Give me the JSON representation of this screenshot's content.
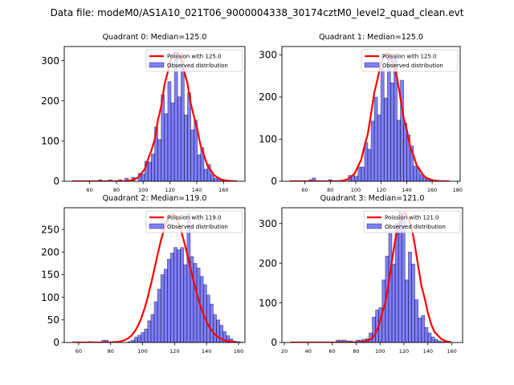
{
  "suptitle": "Data file: modeM0/AS1A10_021T06_9000004338_30174cztM0_level2_quad_clean.evt",
  "chart_data": [
    {
      "type": "bar",
      "title": "Quadrant 0: Median=125.0",
      "xlabel": "",
      "ylabel": "",
      "xlim": [
        41,
        176
      ],
      "ylim": [
        0,
        335
      ],
      "xticks": [
        60,
        80,
        100,
        120,
        140,
        160
      ],
      "yticks": [
        0,
        100,
        200,
        300
      ],
      "legend": {
        "position": "top-right",
        "entries": [
          "Poission with 125.0",
          "Observed distribution"
        ]
      },
      "hist": {
        "bin_start": 47,
        "bin_width": 2.46,
        "values": [
          0,
          0,
          0,
          0,
          0,
          0,
          0,
          0,
          4,
          0,
          0,
          4,
          0,
          0,
          4,
          0,
          8,
          0,
          10,
          0,
          20,
          18,
          50,
          48,
          68,
          135,
          104,
          215,
          168,
          248,
          195,
          320,
          210,
          300,
          165,
          220,
          128,
          152,
          66,
          84,
          30,
          42,
          18,
          8,
          6,
          3,
          2,
          1,
          0,
          0
        ]
      },
      "poisson": {
        "mean": 125.0,
        "peak": 322,
        "x_range": [
          47,
          170
        ]
      }
    },
    {
      "type": "bar",
      "title": "Quadrant 1: Median=125.0",
      "xlabel": "",
      "ylabel": "",
      "xlim": [
        42,
        182
      ],
      "ylim": [
        0,
        320
      ],
      "xticks": [
        60,
        80,
        100,
        120,
        140,
        160,
        180
      ],
      "yticks": [
        0,
        100,
        200,
        300
      ],
      "legend": {
        "position": "top-right",
        "entries": [
          "Poission with 125.0",
          "Observed distribution"
        ]
      },
      "hist": {
        "bin_start": 48,
        "bin_width": 2.56,
        "values": [
          0,
          0,
          0,
          0,
          0,
          0,
          4,
          8,
          0,
          0,
          0,
          0,
          4,
          0,
          0,
          0,
          0,
          0,
          14,
          14,
          12,
          34,
          34,
          92,
          76,
          143,
          200,
          158,
          270,
          198,
          298,
          234,
          300,
          145,
          240,
          138,
          110,
          84,
          36,
          32,
          16,
          10,
          6,
          4,
          2,
          1,
          0,
          0,
          0,
          0
        ]
      },
      "poisson": {
        "mean": 125.0,
        "peak": 305,
        "x_range": [
          48,
          176
        ]
      }
    },
    {
      "type": "bar",
      "title": "Quadrant 2: Median=119.0",
      "xlabel": "",
      "ylabel": "",
      "xlim": [
        51,
        164
      ],
      "ylim": [
        0,
        298
      ],
      "xticks": [
        60,
        80,
        100,
        120,
        140,
        160
      ],
      "yticks": [
        0,
        50,
        100,
        150,
        200,
        250
      ],
      "legend": {
        "position": "top-right",
        "entries": [
          "Poission with 119.0",
          "Observed distribution"
        ]
      },
      "hist": {
        "bin_start": 56,
        "bin_width": 2.05,
        "values": [
          0,
          0,
          0,
          0,
          0,
          2,
          0,
          0,
          0,
          5,
          5,
          0,
          0,
          0,
          0,
          0,
          0,
          2,
          5,
          12,
          16,
          22,
          30,
          48,
          62,
          90,
          118,
          150,
          162,
          184,
          198,
          210,
          205,
          210,
          172,
          285,
          190,
          175,
          165,
          146,
          128,
          105,
          85,
          62,
          50,
          38,
          24,
          15,
          8,
          3,
          2,
          1,
          0
        ]
      },
      "poisson": {
        "mean": 119.0,
        "peak": 285,
        "x_range": [
          56,
          159
        ]
      }
    },
    {
      "type": "bar",
      "title": "Quadrant 3: Median=121.0",
      "xlabel": "",
      "ylabel": "",
      "xlim": [
        18,
        169
      ],
      "ylim": [
        0,
        340
      ],
      "xticks": [
        20,
        40,
        60,
        80,
        100,
        120,
        140,
        160
      ],
      "yticks": [
        0,
        100,
        200,
        300
      ],
      "legend": {
        "position": "top-right",
        "entries": [
          "Poission with 121.0",
          "Observed distribution"
        ]
      },
      "hist": {
        "bin_start": 25,
        "bin_width": 2.74,
        "values": [
          0,
          0,
          0,
          0,
          0,
          0,
          0,
          0,
          0,
          0,
          0,
          0,
          0,
          0,
          6,
          6,
          6,
          4,
          4,
          2,
          6,
          6,
          8,
          10,
          24,
          64,
          82,
          88,
          158,
          218,
          275,
          198,
          300,
          330,
          310,
          158,
          228,
          198,
          108,
          62,
          68,
          38,
          24,
          14,
          8,
          4,
          2,
          3,
          0,
          0,
          0
        ]
      },
      "poisson": {
        "mean": 121.0,
        "peak": 328,
        "x_range": [
          25,
          162
        ]
      }
    }
  ]
}
